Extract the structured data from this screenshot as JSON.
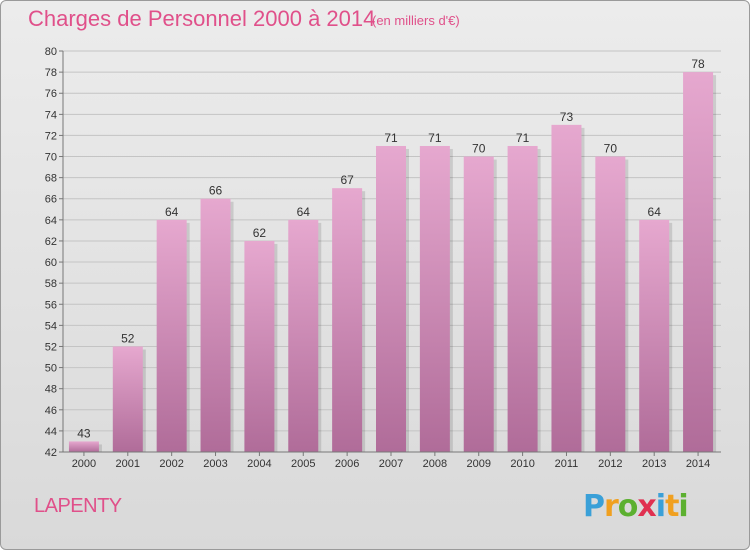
{
  "title": "Charges de Personnel 2000 à 2014",
  "subtitle": "(en milliers d'€)",
  "commune": "LAPENTY",
  "logo": {
    "letters": [
      "P",
      "r",
      "o",
      "x",
      "i",
      "t",
      "i"
    ],
    "colors": [
      "#3aa0d8",
      "#f0a020",
      "#5cb030",
      "#e03050",
      "#3aa0d8",
      "#f0a020",
      "#5cb030"
    ]
  },
  "colors": {
    "title": "#e0508a",
    "bar_top": "#e6a8cf",
    "bar_bottom": "#b06c99"
  },
  "chart_data": {
    "type": "bar",
    "title": "Charges de Personnel 2000 à 2014",
    "categories": [
      "2000",
      "2001",
      "2002",
      "2003",
      "2004",
      "2005",
      "2006",
      "2007",
      "2008",
      "2009",
      "2010",
      "2011",
      "2012",
      "2013",
      "2014"
    ],
    "values": [
      43,
      52,
      64,
      66,
      62,
      64,
      67,
      71,
      71,
      70,
      71,
      73,
      70,
      64,
      78
    ],
    "ylim": [
      42,
      80
    ],
    "yticks": [
      42,
      44,
      46,
      48,
      50,
      52,
      54,
      56,
      58,
      60,
      62,
      64,
      66,
      68,
      70,
      72,
      74,
      76,
      78,
      80
    ],
    "grid": true,
    "data_labels": true
  }
}
